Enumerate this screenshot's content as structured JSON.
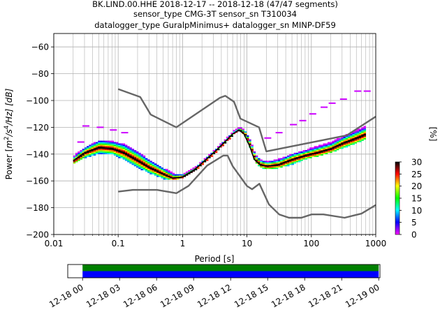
{
  "chart_data": [
    {
      "type": "heatmap",
      "title_lines": [
        "BK.LIND.00.HHE   2018-12-17 -- 2018-12-18  (47/47 segments)",
        "sensor_type CMG-3T sensor_sn T310034",
        "datalogger_type GuralpMinimus+ datalogger_sn MINP-DF59"
      ],
      "xlabel": "Period [s]",
      "ylabel_parts": {
        "prefix": "Power [",
        "m": "m",
        "exp2": "2",
        "slash_s": "/s",
        "exp4": "4",
        "rest": "/Hz] [dB]"
      },
      "x_scale": "log",
      "xlim": [
        0.01,
        1000
      ],
      "ylim": [
        -200,
        -50
      ],
      "x_ticks": [
        0.01,
        0.1,
        1,
        10,
        100,
        1000
      ],
      "x_tick_labels": [
        "0.01",
        "0.1",
        "1",
        "10",
        "100",
        "1000"
      ],
      "y_ticks": [
        -200,
        -180,
        -160,
        -140,
        -120,
        -100,
        -80,
        -60
      ],
      "y_tick_labels": [
        "−200",
        "−180",
        "−160",
        "−140",
        "−120",
        "−100",
        "−80",
        "−60"
      ],
      "grid": true,
      "colorbar": {
        "label": "[%]",
        "range": [
          0,
          30
        ],
        "ticks": [
          0,
          5,
          10,
          15,
          20,
          25,
          30
        ],
        "tick_labels": [
          "0",
          "5",
          "10",
          "15",
          "20",
          "25",
          "30"
        ],
        "colors": [
          "#ff00ff",
          "#0000ff",
          "#00ffff",
          "#00ff00",
          "#ffff00",
          "#ff0000",
          "#000000"
        ]
      },
      "mode_curve": {
        "x": [
          0.02,
          0.03,
          0.05,
          0.08,
          0.12,
          0.2,
          0.3,
          0.5,
          0.7,
          1.0,
          1.5,
          2.2,
          3.2,
          4.5,
          6.0,
          7.5,
          9.0,
          11.0,
          13.0,
          16.0,
          20.0,
          30.0,
          50.0,
          80.0,
          120.0,
          200.0,
          300.0,
          500.0,
          700.0
        ],
        "y": [
          -145,
          -139,
          -135,
          -136,
          -139,
          -145,
          -150,
          -155,
          -158,
          -157,
          -152,
          -145,
          -138,
          -131,
          -125,
          -122,
          -125,
          -134,
          -144,
          -148,
          -149,
          -148,
          -144,
          -141,
          -139,
          -136,
          -132,
          -128,
          -125
        ]
      },
      "density_percent": [
        {
          "x": [
            0.02,
            0.03,
            0.05,
            0.08,
            0.12,
            0.2,
            0.3,
            0.5,
            0.7,
            1.0,
            1.5,
            2.2,
            3.2,
            4.5,
            6.0,
            7.5,
            9.0,
            11.0,
            13.0,
            16.0,
            20.0,
            30.0,
            50.0,
            80.0,
            120.0,
            200.0,
            300.0,
            500.0,
            700.0
          ],
          "y_low": [
            -147,
            -143,
            -140,
            -141,
            -145,
            -151,
            -155,
            -159,
            -160,
            -158,
            -153,
            -146,
            -139,
            -132,
            -126,
            -123,
            -127,
            -137,
            -147,
            -151,
            -152,
            -151,
            -148,
            -144,
            -142,
            -139,
            -136,
            -132,
            -129
          ],
          "y_high": [
            -141,
            -135,
            -130,
            -131,
            -133,
            -139,
            -145,
            -151,
            -155,
            -155,
            -150,
            -143,
            -136,
            -129,
            -123,
            -120,
            -123,
            -131,
            -141,
            -145,
            -146,
            -144,
            -140,
            -137,
            -134,
            -131,
            -127,
            -122,
            -119
          ],
          "percent": 25
        }
      ],
      "sparse_branch": {
        "x": [
          0.025,
          0.03,
          0.05,
          0.08,
          0.12,
          20,
          30,
          50,
          70,
          100,
          150,
          200,
          300,
          500,
          700
        ],
        "y": [
          -131,
          -119,
          -120,
          -122,
          -124,
          -128,
          -124,
          -118,
          -115,
          -110,
          -105,
          -102,
          -99,
          -93,
          -93
        ],
        "percent": 1
      },
      "noise_model_high": {
        "x": [
          0.1,
          0.22,
          0.32,
          0.8,
          3.8,
          4.6,
          6.3,
          7.9,
          15.4,
          20.0,
          354.8,
          1000
        ],
        "y": [
          -91.5,
          -97.4,
          -110.5,
          -120.0,
          -98.0,
          -96.5,
          -101.0,
          -113.5,
          -120.0,
          -138.0,
          -126.0,
          -112.0
        ]
      },
      "noise_model_low": {
        "x": [
          0.1,
          0.17,
          0.4,
          0.8,
          1.24,
          2.4,
          4.3,
          5.0,
          6.0,
          10.0,
          12.0,
          15.6,
          21.9,
          31.6,
          45.0,
          70.0,
          101.0,
          154.0,
          328.0,
          600.0,
          1000.0
        ],
        "y": [
          -168.0,
          -166.7,
          -166.7,
          -169.2,
          -163.7,
          -148.6,
          -141.1,
          -141.1,
          -149.0,
          -163.8,
          -166.2,
          -162.1,
          -177.5,
          -185.0,
          -187.5,
          -187.5,
          -185.0,
          -185.0,
          -187.5,
          -184.4,
          -178.0
        ]
      }
    },
    {
      "type": "timeline",
      "x_tick_labels": [
        "12-18 00",
        "12-18 03",
        "12-18 06",
        "12-18 09",
        "12-18 12",
        "12-18 15",
        "12-18 18",
        "12-18 21",
        "12-19 00"
      ],
      "range_hours": [
        -1.2,
        24.1
      ],
      "data_available_hours": [
        0,
        24
      ],
      "tracks": [
        {
          "name": "",
          "color": "#008000"
        },
        {
          "name": "",
          "color": "#0000ff"
        }
      ]
    }
  ]
}
